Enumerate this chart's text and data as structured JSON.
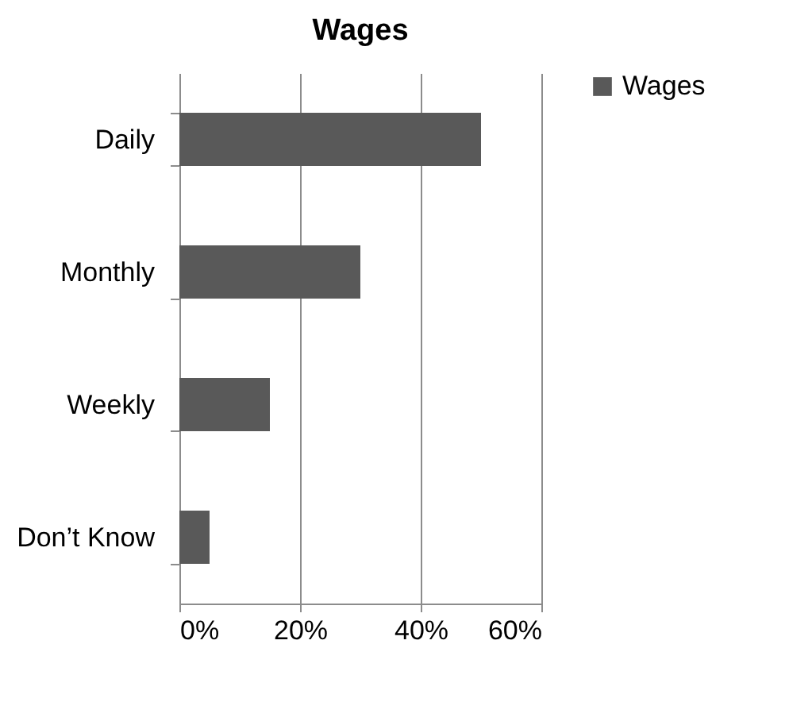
{
  "chart_data": {
    "type": "bar",
    "orientation": "horizontal",
    "title": "Wages",
    "categories": [
      "Daily",
      "Monthly",
      "Weekly",
      "Don’t Know"
    ],
    "series": [
      {
        "name": "Wages",
        "color": "#595959",
        "values": [
          50,
          30,
          15,
          5
        ]
      }
    ],
    "xlim": [
      0,
      60
    ],
    "xticks": [
      {
        "value": 0,
        "label": "0%"
      },
      {
        "value": 20,
        "label": "20%"
      },
      {
        "value": 40,
        "label": "40%"
      },
      {
        "value": 60,
        "label": "60%"
      }
    ],
    "grid": "x",
    "legend": "right"
  }
}
